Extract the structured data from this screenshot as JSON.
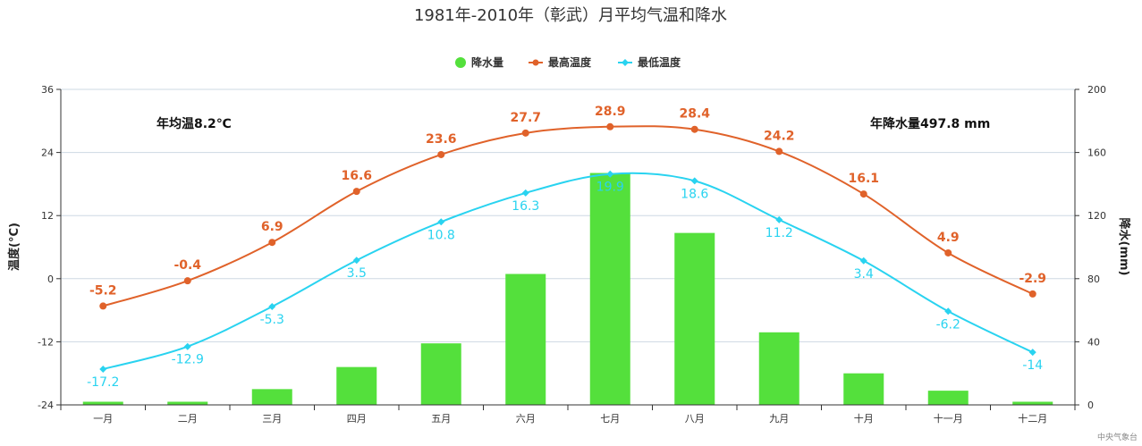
{
  "chart_data": {
    "type": "bar+line",
    "title": "1981年-2010年（彰武）月平均气温和降水",
    "categories": [
      "一月",
      "二月",
      "三月",
      "四月",
      "五月",
      "六月",
      "七月",
      "八月",
      "九月",
      "十月",
      "十一月",
      "十二月"
    ],
    "series": [
      {
        "name": "降水量",
        "type": "bar",
        "axis": "right",
        "color": "#54e03c",
        "values": [
          2,
          2,
          10,
          24,
          39,
          83,
          147,
          109,
          46,
          20,
          9,
          2
        ]
      },
      {
        "name": "最高温度",
        "type": "line",
        "axis": "left",
        "color": "#e0622a",
        "values": [
          -5.2,
          -0.4,
          6.9,
          16.6,
          23.6,
          27.7,
          28.9,
          28.4,
          24.2,
          16.1,
          4.9,
          -2.9
        ]
      },
      {
        "name": "最低温度",
        "type": "line",
        "axis": "left",
        "color": "#29d3f0",
        "values": [
          -17.2,
          -12.9,
          -5.3,
          3.5,
          10.8,
          16.3,
          19.9,
          18.6,
          11.2,
          3.4,
          -6.2,
          -14
        ]
      }
    ],
    "ylabel": "温度(°C)",
    "ylabel_right": "降水(mm)",
    "ylim": [
      -24,
      36
    ],
    "yticks": [
      -24,
      -12,
      0,
      12,
      24,
      36
    ],
    "ylim_right": [
      0,
      200
    ],
    "yticks_right": [
      0,
      40,
      80,
      120,
      160,
      200
    ],
    "grid": true,
    "legend_position": "top-center",
    "annotations": {
      "annual_temp": "年均温8.2℃",
      "annual_precip": "年降水量497.8 mm"
    }
  },
  "credit": "中央气象台"
}
